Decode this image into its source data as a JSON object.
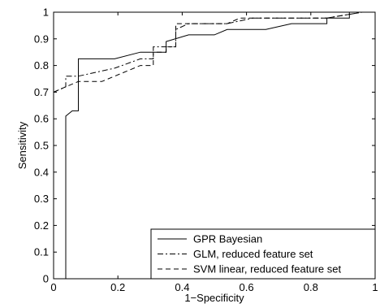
{
  "chart_data": {
    "type": "line",
    "title": "",
    "xlabel": "1−Specificity",
    "ylabel": "Sensitivity",
    "xlim": [
      0,
      1
    ],
    "ylim": [
      0,
      1
    ],
    "grid": false,
    "legend_position": "bottom-right",
    "x_ticks": [
      "0",
      "0.2",
      "0.4",
      "0.6",
      "0.8",
      "1"
    ],
    "y_ticks": [
      "0",
      "0.1",
      "0.2",
      "0.3",
      "0.4",
      "0.5",
      "0.6",
      "0.7",
      "0.8",
      "0.9",
      "1"
    ],
    "series": [
      {
        "name": "GPR Bayesian",
        "dash": "solid",
        "points": [
          [
            0.038,
            0.0
          ],
          [
            0.038,
            0.61
          ],
          [
            0.058,
            0.63
          ],
          [
            0.077,
            0.63
          ],
          [
            0.077,
            0.825
          ],
          [
            0.19,
            0.825
          ],
          [
            0.27,
            0.85
          ],
          [
            0.31,
            0.85
          ],
          [
            0.35,
            0.85
          ],
          [
            0.35,
            0.89
          ],
          [
            0.42,
            0.915
          ],
          [
            0.5,
            0.915
          ],
          [
            0.54,
            0.935
          ],
          [
            0.66,
            0.935
          ],
          [
            0.74,
            0.957
          ],
          [
            0.85,
            0.957
          ],
          [
            0.85,
            0.978
          ],
          [
            0.92,
            0.978
          ],
          [
            0.92,
            1.0
          ],
          [
            0.96,
            1.0
          ]
        ]
      },
      {
        "name": "GLM, reduced feature set",
        "dash": "dashdot",
        "points": [
          [
            0.0,
            0.7
          ],
          [
            0.038,
            0.72
          ],
          [
            0.038,
            0.76
          ],
          [
            0.077,
            0.76
          ],
          [
            0.19,
            0.79
          ],
          [
            0.27,
            0.825
          ],
          [
            0.31,
            0.825
          ],
          [
            0.31,
            0.87
          ],
          [
            0.38,
            0.87
          ],
          [
            0.38,
            0.935
          ],
          [
            0.42,
            0.957
          ],
          [
            0.54,
            0.957
          ],
          [
            0.62,
            0.978
          ],
          [
            0.85,
            0.978
          ],
          [
            0.96,
            1.0
          ]
        ]
      },
      {
        "name": "SVM linear, reduced feature set",
        "dash": "dashed",
        "points": [
          [
            0.0,
            0.7
          ],
          [
            0.038,
            0.72
          ],
          [
            0.077,
            0.74
          ],
          [
            0.15,
            0.74
          ],
          [
            0.27,
            0.8
          ],
          [
            0.31,
            0.8
          ],
          [
            0.31,
            0.85
          ],
          [
            0.35,
            0.85
          ],
          [
            0.35,
            0.87
          ],
          [
            0.38,
            0.87
          ],
          [
            0.38,
            0.957
          ],
          [
            0.54,
            0.957
          ],
          [
            0.58,
            0.978
          ],
          [
            0.85,
            0.978
          ],
          [
            0.96,
            1.0
          ]
        ]
      }
    ]
  }
}
